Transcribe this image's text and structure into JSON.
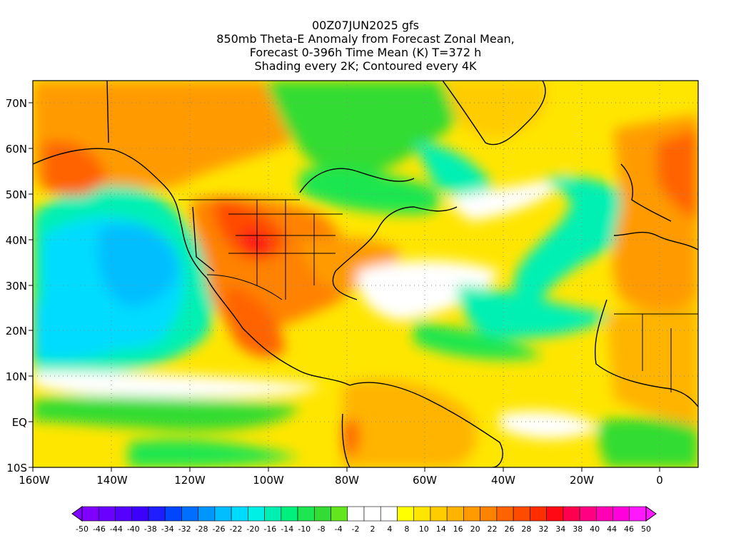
{
  "title": {
    "line1": "00Z07JUN2025 gfs",
    "line2": "850mb Theta-E Anomaly from Forecast Zonal Mean,",
    "line3": "Forecast 0-396h Time Mean (K) T=372 h",
    "line4": "Shading every 2K; Contoured every 4K"
  },
  "axes": {
    "lat_labels": [
      "70N",
      "60N",
      "50N",
      "40N",
      "30N",
      "20N",
      "10N",
      "EQ",
      "10S"
    ],
    "lat_values": [
      70,
      60,
      50,
      40,
      30,
      20,
      10,
      0,
      -10
    ],
    "lon_labels": [
      "160W",
      "140W",
      "120W",
      "100W",
      "80W",
      "60W",
      "40W",
      "20W",
      "0"
    ],
    "lon_values": [
      -160,
      -140,
      -120,
      -100,
      -80,
      -60,
      -40,
      -20,
      0
    ],
    "lat_range": [
      -10,
      75
    ],
    "lon_range": [
      -160,
      10
    ]
  },
  "colorbar": {
    "labels": [
      "-50",
      "-46",
      "-44",
      "-40",
      "-38",
      "-34",
      "-32",
      "-28",
      "-26",
      "-22",
      "-20",
      "-16",
      "-14",
      "-10",
      "-8",
      "-4",
      "-2",
      "2",
      "4",
      "8",
      "10",
      "14",
      "16",
      "20",
      "22",
      "26",
      "28",
      "32",
      "34",
      "38",
      "40",
      "44",
      "46",
      "50"
    ],
    "colors": [
      "#7f00ff",
      "#6a00ff",
      "#5500ff",
      "#3c00ff",
      "#1e1eff",
      "#0046ff",
      "#006eff",
      "#0096ff",
      "#00beff",
      "#00dcff",
      "#00f0e6",
      "#00f0b4",
      "#00f07d",
      "#1ee650",
      "#32dc32",
      "#64e61e",
      "#ffffff",
      "#ffffff",
      "#ffffff",
      "#ffff00",
      "#ffe600",
      "#ffcc00",
      "#ffb400",
      "#ff9b00",
      "#ff8200",
      "#ff6400",
      "#ff4b00",
      "#ff2d00",
      "#ff0a14",
      "#ff0050",
      "#ff0082",
      "#ff00b4",
      "#ff00dc",
      "#ff19ff"
    ]
  }
}
